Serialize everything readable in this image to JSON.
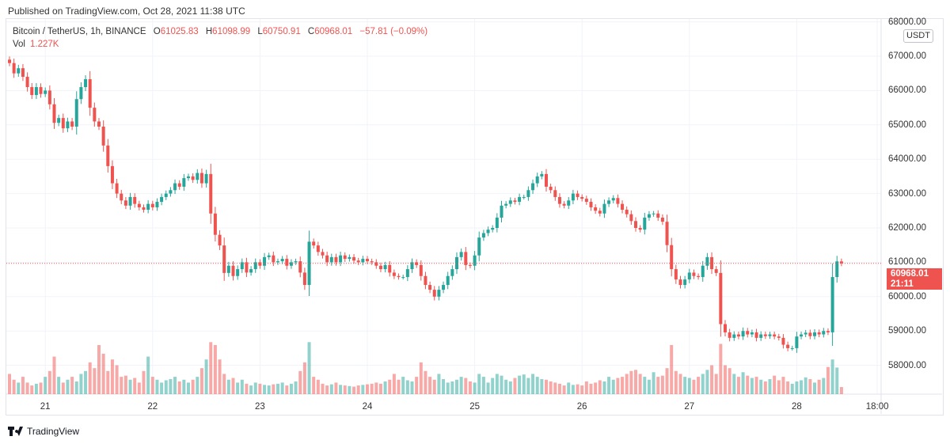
{
  "published": "Published on TradingView.com, Oct 28, 2021 11:38 UTC",
  "legend": {
    "symbol": "Bitcoin / TetherUS, 1h, BINANCE",
    "o_label": "O",
    "o": "61025.83",
    "h_label": "H",
    "h": "61098.99",
    "l_label": "L",
    "l": "60750.91",
    "c_label": "C",
    "c": "60968.01",
    "change": "−57.81 (−0.09%)",
    "vol_label": "Vol",
    "vol": "1.227K"
  },
  "currency": "USDT",
  "last_price": {
    "price": "60968.01",
    "countdown": "21:11"
  },
  "brand": "TradingView",
  "colors": {
    "up": "#26a69a",
    "down": "#ef5350"
  },
  "chart_data": {
    "type": "candlestick",
    "interval": "1h",
    "title": "Bitcoin / TetherUS, 1h, BINANCE",
    "ylim": [
      57500,
      68000
    ],
    "price_ticks": [
      "68000.00",
      "67000.00",
      "66000.00",
      "65000.00",
      "64000.00",
      "63000.00",
      "62000.00",
      "61000.00",
      "60000.00",
      "59000.00",
      "58000.00"
    ],
    "time_ticks": [
      {
        "label": "21",
        "hour": 8
      },
      {
        "label": "22",
        "hour": 32
      },
      {
        "label": "23",
        "hour": 56
      },
      {
        "label": "24",
        "hour": 80
      },
      {
        "label": "25",
        "hour": 104
      },
      {
        "label": "26",
        "hour": 128
      },
      {
        "label": "27",
        "hour": 152
      },
      {
        "label": "28",
        "hour": 176
      },
      {
        "label": "18:00",
        "hour": 194
      }
    ],
    "first_open": 66900,
    "closes": [
      66800,
      66500,
      66650,
      66400,
      66100,
      65870,
      66100,
      65900,
      66000,
      65600,
      65060,
      65200,
      64900,
      65100,
      64950,
      65750,
      66100,
      66330,
      65500,
      65100,
      64950,
      64400,
      63800,
      63300,
      63000,
      62800,
      62650,
      62900,
      62700,
      62600,
      62530,
      62700,
      62600,
      62760,
      62900,
      63000,
      63100,
      63300,
      63200,
      63450,
      63500,
      63400,
      63600,
      63300,
      63570,
      62420,
      61800,
      61490,
      60690,
      60900,
      60600,
      60800,
      61000,
      60700,
      60800,
      61000,
      60900,
      61150,
      61200,
      61000,
      61030,
      61100,
      60900,
      61000,
      61030,
      60700,
      60340,
      61600,
      61490,
      61300,
      61200,
      61000,
      61150,
      61000,
      61200,
      61100,
      61150,
      61050,
      61000,
      61100,
      61030,
      61000,
      60900,
      60800,
      60920,
      60700,
      60600,
      60570,
      60570,
      60800,
      61000,
      60920,
      60600,
      60340,
      60200,
      60000,
      60200,
      60340,
      60600,
      60800,
      61150,
      61300,
      60920,
      60900,
      61200,
      61720,
      61850,
      61950,
      62000,
      62300,
      62650,
      62700,
      62800,
      62760,
      62900,
      62900,
      63100,
      63300,
      63500,
      63570,
      63200,
      63100,
      62900,
      62700,
      62650,
      62800,
      63000,
      62900,
      62850,
      62760,
      62600,
      62500,
      62420,
      62700,
      62800,
      62870,
      62700,
      62530,
      62400,
      62200,
      62000,
      61950,
      62300,
      62400,
      62420,
      62300,
      62180,
      61500,
      60800,
      60500,
      60340,
      60500,
      60700,
      60600,
      60570,
      60900,
      61150,
      60800,
      60690,
      59200,
      58960,
      58800,
      58900,
      58840,
      59000,
      58900,
      58960,
      58800,
      58900,
      58850,
      58900,
      58840,
      58800,
      58600,
      58500,
      58500,
      58840,
      58900,
      58950,
      58850,
      58960,
      58900,
      59000,
      58960,
      60570,
      61026,
      60968.01
    ],
    "volumes_k": [
      3.5,
      2.5,
      2,
      3,
      2,
      1.5,
      1.8,
      2,
      3,
      4,
      6.5,
      3,
      2,
      2.5,
      3,
      2.2,
      3.5,
      4,
      5.5,
      4.5,
      8.5,
      7,
      4,
      6,
      5,
      3,
      3.2,
      2.5,
      2.8,
      2,
      4,
      6.5,
      3,
      2.5,
      2,
      2.4,
      2.6,
      3,
      2.2,
      2.5,
      2,
      2.5,
      3,
      4.5,
      6,
      9,
      8.5,
      6,
      3.5,
      2.5,
      2.8,
      2,
      2.5,
      1.8,
      1.5,
      2,
      1.8,
      1.6,
      1.5,
      1.7,
      1.8,
      2,
      1.5,
      1.8,
      2.2,
      4,
      5.5,
      9,
      3,
      2.5,
      1.8,
      1.5,
      1.7,
      2,
      1.6,
      1.5,
      1.4,
      1.3,
      1.5,
      1.6,
      1.7,
      1.8,
      2,
      1.8,
      2.2,
      2.5,
      3.5,
      2.5,
      3,
      2.4,
      2.2,
      3,
      5.5,
      4,
      3,
      2.5,
      3.5,
      2.6,
      2,
      2.2,
      2.5,
      3,
      2.8,
      2.2,
      2,
      3.5,
      3,
      2,
      2.8,
      3.5,
      3.2,
      2.5,
      2.2,
      2.8,
      3.2,
      3.4,
      2.8,
      3.5,
      3,
      2.6,
      2.5,
      2.2,
      2,
      1.8,
      1.5,
      2,
      1.6,
      1.7,
      1.5,
      2.2,
      1.8,
      2,
      2.4,
      2.2,
      3,
      2.5,
      2.8,
      3,
      3.5,
      4,
      4.2,
      3.5,
      3,
      2.5,
      3.8,
      3,
      3.2,
      4.5,
      8.5,
      4,
      3.5,
      3,
      2.8,
      2.5,
      3,
      3.5,
      4.2,
      5,
      3.5,
      8.7,
      5,
      4.5,
      3.5,
      3,
      3.8,
      3.2,
      2.8,
      3,
      2.5,
      2.2,
      2.6,
      3.2,
      2.4,
      3,
      2.2,
      1.8,
      2.2,
      2.4,
      2.9,
      2.6,
      2,
      2.5,
      2.8,
      4.7,
      6,
      4.6,
      1.227
    ]
  }
}
